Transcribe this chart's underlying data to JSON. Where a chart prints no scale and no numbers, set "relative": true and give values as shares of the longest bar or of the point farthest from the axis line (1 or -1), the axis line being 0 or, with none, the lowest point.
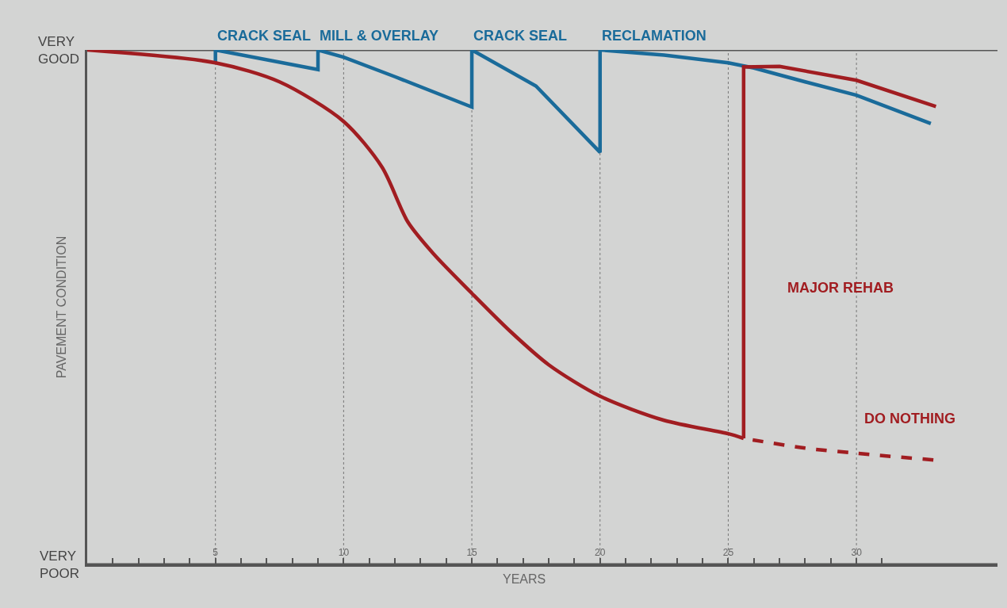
{
  "chart_data": {
    "type": "line",
    "relative": true,
    "xlabel": "YEARS",
    "ylabel": "PAVEMENT CONDITION",
    "xlim": [
      0,
      35.5
    ],
    "xticks": [
      {
        "value": 1,
        "label": null
      },
      {
        "value": 2,
        "label": null
      },
      {
        "value": 3,
        "label": null
      },
      {
        "value": 4,
        "label": null
      },
      5,
      {
        "value": 6,
        "label": null
      },
      {
        "value": 7,
        "label": null
      },
      {
        "value": 8,
        "label": null
      },
      {
        "value": 9,
        "label": null
      },
      10,
      {
        "value": 11,
        "label": null
      },
      {
        "value": 12,
        "label": null
      },
      {
        "value": 13,
        "label": null
      },
      {
        "value": 14,
        "label": null
      },
      15,
      {
        "value": 16,
        "label": null
      },
      {
        "value": 17,
        "label": null
      },
      {
        "value": 18,
        "label": null
      },
      {
        "value": 19,
        "label": null
      },
      20,
      {
        "value": 21,
        "label": null
      },
      {
        "value": 22,
        "label": null
      },
      {
        "value": 23,
        "label": null
      },
      {
        "value": 24,
        "label": null
      },
      25,
      {
        "value": 26,
        "label": null
      },
      {
        "value": 27,
        "label": null
      },
      {
        "value": 28,
        "label": null
      },
      {
        "value": 29,
        "label": null
      },
      30,
      {
        "value": 31,
        "label": null
      }
    ],
    "grid": "x",
    "marker": "none",
    "series": [
      {
        "color": "#1a6b9a",
        "x": [
          5,
          5,
          9,
          9,
          10,
          12,
          15,
          15,
          17.5,
          20,
          20,
          22.5,
          25,
          26,
          28,
          30,
          32.9
        ],
        "values": [
          0.975,
          1.0,
          0.962,
          1.0,
          0.986,
          0.948,
          0.889,
          1.0,
          0.93,
          0.801,
          1.0,
          0.99,
          0.975,
          0.965,
          0.938,
          0.912,
          0.857
        ]
      },
      {
        "color": "#a11d21",
        "x": [
          0,
          5,
          7.5,
          10,
          11.5,
          12.5,
          13.5,
          15,
          16.5,
          18,
          20,
          22.5,
          25,
          25.6
        ],
        "values": [
          1.0,
          0.975,
          0.938,
          0.861,
          0.772,
          0.666,
          0.604,
          0.527,
          0.453,
          0.388,
          0.327,
          0.28,
          0.254,
          0.245
        ]
      },
      {
        "color": "#a11d21",
        "line_style": "dashed",
        "x": [
          25.6,
          28,
          30,
          33
        ],
        "values": [
          0.245,
          0.226,
          0.216,
          0.203
        ]
      },
      {
        "color": "#a11d21",
        "x": [
          25.6,
          25.6,
          27,
          30,
          33.1
        ],
        "values": [
          0.245,
          0.967,
          0.968,
          0.941,
          0.89
        ]
      }
    ],
    "ref_lines": [
      {
        "axis": "y",
        "value": 1,
        "label": "VERY GOOD",
        "color": "#555555"
      },
      {
        "axis": "y",
        "value": 0,
        "label": "VERY POOR",
        "color": "#555555"
      }
    ],
    "annotations": [
      {
        "text": "CRACK SEAL",
        "x": 5,
        "y": 1
      },
      {
        "text": "MILL & OVERLAY",
        "x": 9,
        "y": 1
      },
      {
        "text": "CRACK SEAL",
        "x": 15,
        "y": 1
      },
      {
        "text": "RECLAMATION",
        "x": 20,
        "y": 1
      },
      "MAJOR REHAB",
      "DO NOTHING"
    ]
  }
}
